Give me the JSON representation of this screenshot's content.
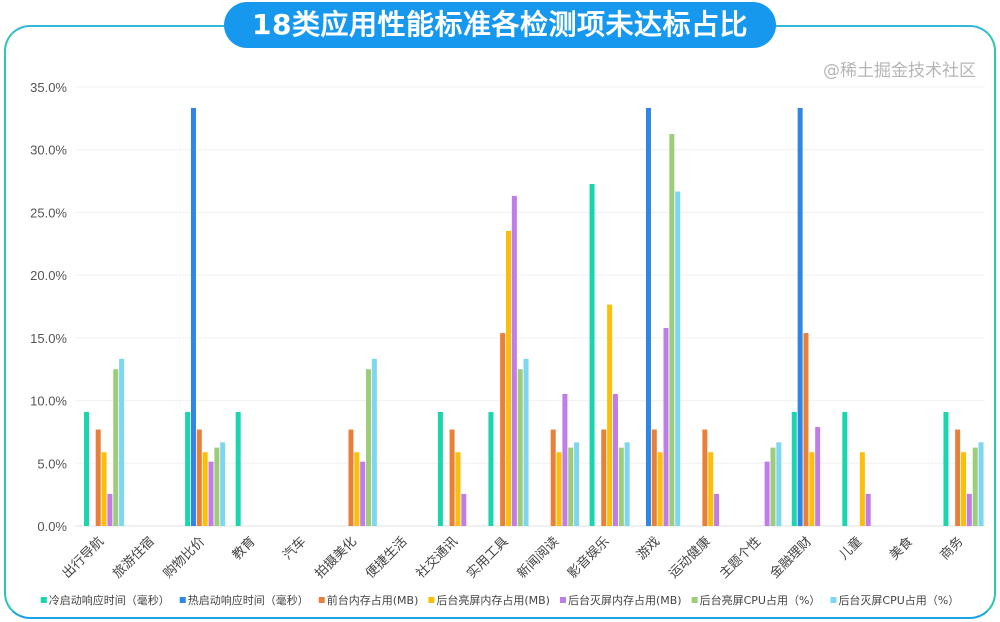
{
  "chart_data": {
    "type": "bar",
    "title": "18类应用性能标准各检测项未达标占比",
    "xlabel": "",
    "ylabel": "",
    "ylim": [
      0,
      35
    ],
    "yticks": [
      "0.0%",
      "5.0%",
      "10.0%",
      "15.0%",
      "20.0%",
      "25.0%",
      "30.0%",
      "35.0%"
    ],
    "grid": true,
    "legend_position": "bottom",
    "categories": [
      "出行导航",
      "旅游住宿",
      "购物比价",
      "教育",
      "汽车",
      "拍摄美化",
      "便捷生活",
      "社交通讯",
      "实用工具",
      "新闻阅读",
      "影音娱乐",
      "游戏",
      "运动健康",
      "主题个性",
      "金融理财",
      "儿童",
      "美食",
      "商务"
    ],
    "series": [
      {
        "name": "冷启动响应时间（毫秒）",
        "color": "#19d6ae",
        "values": [
          9.09,
          0,
          9.09,
          9.09,
          0,
          0,
          0,
          9.09,
          9.09,
          0,
          27.27,
          0,
          0,
          0,
          9.09,
          9.09,
          0,
          9.09
        ]
      },
      {
        "name": "热启动响应时间（毫秒）",
        "color": "#2e86e6",
        "values": [
          0,
          0,
          33.33,
          0,
          0,
          0,
          0,
          0,
          0,
          0,
          0,
          33.33,
          0,
          0,
          33.33,
          0,
          0,
          0
        ]
      },
      {
        "name": "前台内存占用(MB)",
        "color": "#e8803a",
        "values": [
          7.69,
          0,
          7.69,
          0,
          0,
          7.69,
          0,
          7.69,
          15.38,
          7.69,
          7.69,
          7.69,
          7.69,
          0,
          15.38,
          0,
          0,
          7.69
        ]
      },
      {
        "name": "后台亮屏内存占用(MB)",
        "color": "#fbbf0a",
        "values": [
          5.88,
          0,
          5.88,
          0,
          0,
          5.88,
          0,
          5.88,
          23.53,
          5.88,
          17.65,
          5.88,
          5.88,
          0,
          5.88,
          5.88,
          0,
          5.88
        ]
      },
      {
        "name": "后台灭屏内存占用(MB)",
        "color": "#c07de8",
        "values": [
          2.56,
          0,
          5.13,
          0,
          0,
          5.13,
          0,
          2.56,
          26.32,
          10.53,
          10.53,
          15.79,
          2.56,
          5.13,
          7.89,
          2.56,
          0,
          2.56
        ]
      },
      {
        "name": "后台亮屏CPU占用（%）",
        "color": "#9dcc7a",
        "values": [
          12.5,
          0,
          6.25,
          0,
          0,
          12.5,
          0,
          0,
          12.5,
          6.25,
          6.25,
          31.25,
          0,
          6.25,
          0,
          0,
          0,
          6.25
        ]
      },
      {
        "name": "后台灭屏CPU占用（%）",
        "color": "#7fd6f0",
        "values": [
          13.33,
          0,
          6.67,
          0,
          0,
          13.33,
          0,
          0,
          13.33,
          6.67,
          6.67,
          26.67,
          0,
          6.67,
          0,
          0,
          0,
          6.67
        ]
      }
    ]
  },
  "watermark": "@稀土掘金技术社区"
}
